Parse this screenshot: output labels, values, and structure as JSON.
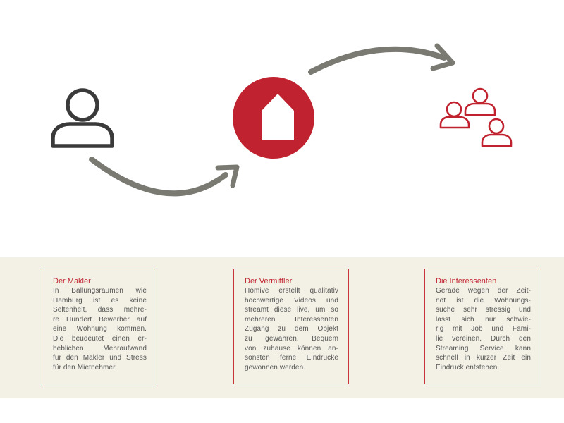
{
  "colors": {
    "accent": "#c0232f",
    "arrow": "#7a7a73",
    "person": "#3a3a3a",
    "band": "#f3f1e6",
    "text": "#555555"
  },
  "icons": {
    "person": "person-icon",
    "house": "house-icon",
    "group": "group-icon",
    "arrow": "curved-arrow-icon"
  },
  "cards": [
    {
      "title": "Der Makler",
      "lines": [
        "In Ballungsräumen wie",
        "Hamburg ist es keine",
        "Seltenheit, dass mehre-",
        "re Hundert Bewerber auf",
        "eine Wohnung kommen.",
        "Die beudeutet einen er-",
        "heblichen Mehraufwand",
        "für den Makler und Stress",
        "für den Mietnehmer."
      ]
    },
    {
      "title": "Der Vermittler",
      "lines": [
        "Homive erstellt qualitativ",
        "hochwertige Videos und",
        "streamt diese live, um so",
        "mehreren Interessenten",
        "Zugang zu dem Objekt",
        "zu gewähren. Bequem",
        "von zuhause können an-",
        "sonsten ferne Eindrücke",
        "gewonnen werden."
      ]
    },
    {
      "title": "Die Interessenten",
      "lines": [
        "Gerade wegen der Zeit-",
        "not ist die Wohnungs-",
        "suche sehr stressig und",
        "lässt sich nur schwie-",
        "rig mit Job und Fami-",
        "lie vereinen. Durch den",
        "Streaming Service kann",
        "schnell in kurzer Zeit ein",
        "Eindruck entstehen."
      ]
    }
  ]
}
